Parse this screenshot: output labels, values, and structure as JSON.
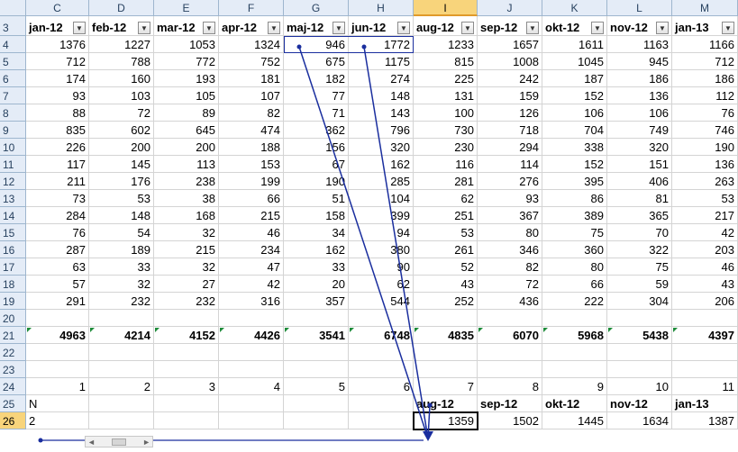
{
  "columns": [
    "C",
    "D",
    "E",
    "F",
    "G",
    "H",
    "I",
    "J",
    "K",
    "L",
    "M"
  ],
  "rows": [
    3,
    4,
    5,
    6,
    7,
    8,
    9,
    10,
    11,
    12,
    13,
    14,
    15,
    16,
    17,
    18,
    19,
    20,
    21,
    22,
    23,
    24,
    25,
    26
  ],
  "selected_column": "I",
  "selected_row": 26,
  "header_labels": [
    "jan-12",
    "feb-12",
    "mar-12",
    "apr-12",
    "maj-12",
    "jun-12",
    "aug-12",
    "sep-12",
    "okt-12",
    "nov-12",
    "jan-13"
  ],
  "data_rows": [
    [
      1376,
      1227,
      1053,
      1324,
      946,
      1772,
      1233,
      1657,
      1611,
      1163,
      1166
    ],
    [
      712,
      788,
      772,
      752,
      675,
      1175,
      815,
      1008,
      1045,
      945,
      712
    ],
    [
      174,
      160,
      193,
      181,
      182,
      274,
      225,
      242,
      187,
      186,
      186
    ],
    [
      93,
      103,
      105,
      107,
      77,
      148,
      131,
      159,
      152,
      136,
      112
    ],
    [
      88,
      72,
      89,
      82,
      71,
      143,
      100,
      126,
      106,
      106,
      76
    ],
    [
      835,
      602,
      645,
      474,
      362,
      796,
      730,
      718,
      704,
      749,
      746
    ],
    [
      226,
      200,
      200,
      188,
      156,
      320,
      230,
      294,
      338,
      320,
      190
    ],
    [
      117,
      145,
      113,
      153,
      67,
      162,
      116,
      114,
      152,
      151,
      136
    ],
    [
      211,
      176,
      238,
      199,
      190,
      285,
      281,
      276,
      395,
      406,
      263
    ],
    [
      73,
      53,
      38,
      66,
      51,
      104,
      62,
      93,
      86,
      81,
      53
    ],
    [
      284,
      148,
      168,
      215,
      158,
      399,
      251,
      367,
      389,
      365,
      217
    ],
    [
      76,
      54,
      32,
      46,
      34,
      94,
      53,
      80,
      75,
      70,
      42
    ],
    [
      287,
      189,
      215,
      234,
      162,
      380,
      261,
      346,
      360,
      322,
      203
    ],
    [
      63,
      33,
      32,
      47,
      33,
      90,
      52,
      82,
      80,
      75,
      46
    ],
    [
      57,
      32,
      27,
      42,
      20,
      62,
      43,
      72,
      66,
      59,
      43
    ],
    [
      291,
      232,
      232,
      316,
      357,
      544,
      252,
      436,
      222,
      304,
      206
    ]
  ],
  "totals": [
    4963,
    4214,
    4152,
    4426,
    3541,
    6748,
    4835,
    6070,
    5968,
    5438,
    4397
  ],
  "index_row": [
    1,
    2,
    3,
    4,
    5,
    6,
    7,
    8,
    9,
    10,
    11
  ],
  "row25": {
    "c": "N",
    "i": "aug-12",
    "j": "sep-12",
    "k": "okt-12",
    "l": "nov-12",
    "m": "jan-13"
  },
  "row26": {
    "c": "2",
    "i": "1359",
    "j": "1502",
    "k": "1445",
    "l": "1634",
    "m": "1387"
  },
  "filter_icon": "dropdown-arrow-icon",
  "arrow_color": "#1a2e9e"
}
